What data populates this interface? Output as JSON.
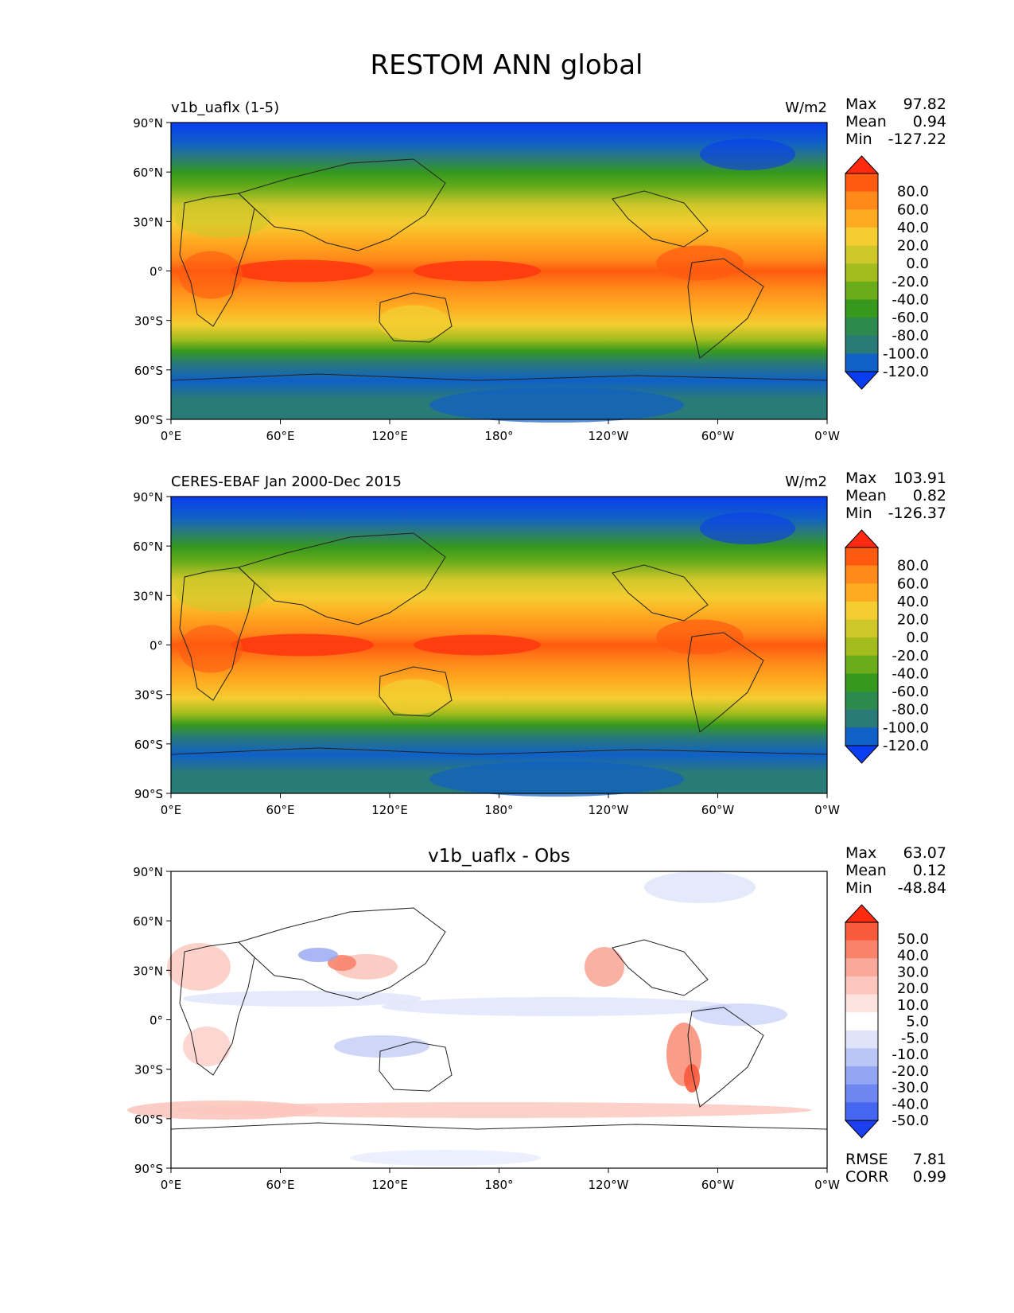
{
  "title": "RESTOM ANN global",
  "lat_ticks": [
    "90°N",
    "60°N",
    "30°N",
    "0°",
    "30°S",
    "60°S",
    "90°S"
  ],
  "lon_ticks": [
    "0°E",
    "60°E",
    "120°E",
    "180°",
    "120°W",
    "60°W",
    "0°W"
  ],
  "stat_labels": {
    "max": "Max",
    "mean": "Mean",
    "min": "Min"
  },
  "panels": [
    {
      "id": "model",
      "left_title": "v1b_uaflx (1-5)",
      "center_title": "",
      "units": "W/m2",
      "stats": {
        "max": "97.82",
        "mean": "0.94",
        "min": "-127.22"
      },
      "colorbar_type": "abs",
      "colorbar_labels": [
        "80.0",
        "60.0",
        "40.0",
        "20.0",
        "0.0",
        "-20.0",
        "-40.0",
        "-60.0",
        "-80.0",
        "-100.0",
        "-120.0"
      ],
      "colorbar_colors": [
        "#ff2a10",
        "#ff5a10",
        "#ff8a1a",
        "#ffaa20",
        "#f4cd30",
        "#cfc72a",
        "#a4bd1e",
        "#6aac1a",
        "#36991e",
        "#2d8a4e",
        "#2a7a78",
        "#1060c8",
        "#0a3cf0"
      ],
      "bottom_stats": null
    },
    {
      "id": "obs",
      "left_title": "CERES-EBAF Jan 2000-Dec 2015",
      "center_title": "",
      "units": "W/m2",
      "stats": {
        "max": "103.91",
        "mean": "0.82",
        "min": "-126.37"
      },
      "colorbar_type": "abs",
      "colorbar_labels": [
        "80.0",
        "60.0",
        "40.0",
        "20.0",
        "0.0",
        "-20.0",
        "-40.0",
        "-60.0",
        "-80.0",
        "-100.0",
        "-120.0"
      ],
      "colorbar_colors": [
        "#ff2a10",
        "#ff5a10",
        "#ff8a1a",
        "#ffaa20",
        "#f4cd30",
        "#cfc72a",
        "#a4bd1e",
        "#6aac1a",
        "#36991e",
        "#2d8a4e",
        "#2a7a78",
        "#1060c8",
        "#0a3cf0"
      ],
      "bottom_stats": null
    },
    {
      "id": "diff",
      "left_title": "",
      "center_title": "v1b_uaflx - Obs",
      "units": "",
      "stats": {
        "max": "63.07",
        "mean": "0.12",
        "min": "-48.84"
      },
      "colorbar_type": "diff",
      "colorbar_labels": [
        "50.0",
        "40.0",
        "30.0",
        "20.0",
        "10.0",
        "5.0",
        "-5.0",
        "-10.0",
        "-20.0",
        "-30.0",
        "-40.0",
        "-50.0"
      ],
      "colorbar_colors": [
        "#ff2a10",
        "#fa5a3c",
        "#f8836a",
        "#f9a89a",
        "#fbc6bd",
        "#fde3de",
        "#ffffff",
        "#dfe4fb",
        "#bac6f6",
        "#93a5f2",
        "#6e86f0",
        "#4566ee",
        "#1a3ef0"
      ],
      "bottom_stats": {
        "rmse_label": "RMSE",
        "rmse": "7.81",
        "corr_label": "CORR",
        "corr": "0.99"
      }
    }
  ]
}
